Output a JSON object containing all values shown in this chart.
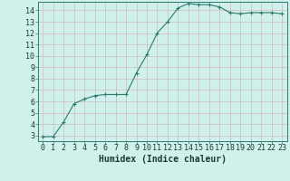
{
  "x": [
    0,
    1,
    2,
    3,
    4,
    5,
    6,
    7,
    8,
    9,
    10,
    11,
    12,
    13,
    14,
    15,
    16,
    17,
    18,
    19,
    20,
    21,
    22,
    23
  ],
  "y": [
    2.9,
    2.9,
    4.2,
    5.8,
    6.2,
    6.5,
    6.6,
    6.6,
    6.6,
    8.5,
    10.1,
    12.0,
    13.0,
    14.2,
    14.6,
    14.5,
    14.5,
    14.3,
    13.8,
    13.7,
    13.8,
    13.8,
    13.8,
    13.7
  ],
  "line_color": "#2d7a6e",
  "marker": "+",
  "marker_size": 3,
  "bg_color": "#cff0eb",
  "grid_color_minor": "#c8e8e2",
  "grid_color_major": "#c0b8bc",
  "xlabel": "Humidex (Indice chaleur)",
  "ytick_labels": [
    "3",
    "4",
    "5",
    "6",
    "7",
    "8",
    "9",
    "10",
    "11",
    "12",
    "13",
    "14"
  ],
  "ytick_vals": [
    3,
    4,
    5,
    6,
    7,
    8,
    9,
    10,
    11,
    12,
    13,
    14
  ],
  "xlim": [
    -0.5,
    23.5
  ],
  "ylim": [
    2.5,
    14.75
  ],
  "xlabel_fontsize": 7,
  "tick_fontsize": 6,
  "line_width": 0.8
}
